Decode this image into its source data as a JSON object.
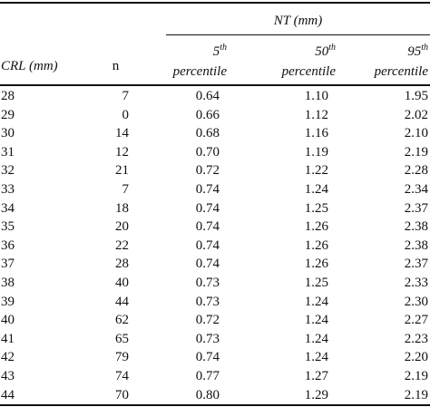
{
  "header": {
    "group_label": "NT (mm)",
    "crl_label": "CRL (mm)",
    "n_label": "n",
    "col5_sup": "th",
    "col5_num": "5",
    "col50_num": "50",
    "col50_sup": "th",
    "col95_num": "95",
    "col95_sup": "th",
    "percentile_label": "percentile"
  },
  "rows": [
    {
      "crl": "28",
      "n": "7",
      "p5": "0.64",
      "p50": "1.10",
      "p95": "1.95"
    },
    {
      "crl": "29",
      "n": "0",
      "p5": "0.66",
      "p50": "1.12",
      "p95": "2.02"
    },
    {
      "crl": "30",
      "n": "14",
      "p5": "0.68",
      "p50": "1.16",
      "p95": "2.10"
    },
    {
      "crl": "31",
      "n": "12",
      "p5": "0.70",
      "p50": "1.19",
      "p95": "2.19"
    },
    {
      "crl": "32",
      "n": "21",
      "p5": "0.72",
      "p50": "1.22",
      "p95": "2.28"
    },
    {
      "crl": "33",
      "n": "7",
      "p5": "0.74",
      "p50": "1.24",
      "p95": "2.34"
    },
    {
      "crl": "34",
      "n": "18",
      "p5": "0.74",
      "p50": "1.25",
      "p95": "2.37"
    },
    {
      "crl": "35",
      "n": "20",
      "p5": "0.74",
      "p50": "1.26",
      "p95": "2.38"
    },
    {
      "crl": "36",
      "n": "22",
      "p5": "0.74",
      "p50": "1.26",
      "p95": "2.38"
    },
    {
      "crl": "37",
      "n": "28",
      "p5": "0.74",
      "p50": "1.26",
      "p95": "2.37"
    },
    {
      "crl": "38",
      "n": "40",
      "p5": "0.73",
      "p50": "1.25",
      "p95": "2.33"
    },
    {
      "crl": "39",
      "n": "44",
      "p5": "0.73",
      "p50": "1.24",
      "p95": "2.30"
    },
    {
      "crl": "40",
      "n": "62",
      "p5": "0.72",
      "p50": "1.24",
      "p95": "2.27"
    },
    {
      "crl": "41",
      "n": "65",
      "p5": "0.73",
      "p50": "1.24",
      "p95": "2.23"
    },
    {
      "crl": "42",
      "n": "79",
      "p5": "0.74",
      "p50": "1.24",
      "p95": "2.20"
    },
    {
      "crl": "43",
      "n": "74",
      "p5": "0.77",
      "p50": "1.27",
      "p95": "2.19"
    },
    {
      "crl": "44",
      "n": "70",
      "p5": "0.80",
      "p50": "1.29",
      "p95": "2.19"
    }
  ]
}
